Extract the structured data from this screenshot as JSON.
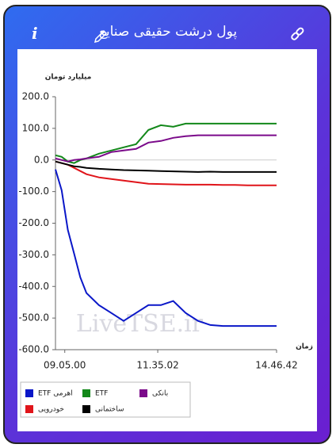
{
  "header": {
    "title": "پول درشت حقیقی صنایع",
    "info_icon": "i"
  },
  "watermark": "LiveTSE.ir",
  "chart_data": {
    "type": "line",
    "y_label": "میلیارد تومان",
    "x_label": "زمان",
    "ylim": [
      -600,
      200
    ],
    "yticks": [
      {
        "value": 200,
        "label": "200.0"
      },
      {
        "value": 100,
        "label": "100.0"
      },
      {
        "value": 0,
        "label": "0.0"
      },
      {
        "value": -100,
        "label": "-100.0"
      },
      {
        "value": -200,
        "label": "-200.0"
      },
      {
        "value": -300,
        "label": "-300.0"
      },
      {
        "value": -400,
        "label": "-400.0"
      },
      {
        "value": -500,
        "label": "-500.0"
      },
      {
        "value": -600,
        "label": "-600.0"
      }
    ],
    "xlim": [
      530,
      886.7
    ],
    "xticks": [
      {
        "value": 545,
        "label": "09.05.00"
      },
      {
        "value": 695,
        "label": "11.35.02"
      },
      {
        "value": 886.7,
        "label": "14.46.42"
      }
    ],
    "x": [
      530,
      540,
      550,
      560,
      570,
      580,
      600,
      620,
      640,
      660,
      680,
      700,
      720,
      740,
      760,
      780,
      800,
      820,
      840,
      860,
      886.7
    ],
    "series": [
      {
        "name": "ETF اهرمی",
        "color": "#0a17c8",
        "values": [
          -30,
          -96,
          -221,
          -296,
          -371,
          -421,
          -459,
          -484,
          -509,
          -484,
          -459,
          -459,
          -446,
          -484,
          -509,
          -522,
          -525,
          -525,
          -525,
          -525,
          -525
        ]
      },
      {
        "name": "ETF",
        "color": "#13881a",
        "values": [
          15,
          10,
          -5,
          -10,
          0,
          5,
          20,
          30,
          40,
          50,
          95,
          110,
          105,
          115,
          115,
          115,
          115,
          115,
          115,
          115,
          115
        ]
      },
      {
        "name": "بانکی",
        "color": "#7b0a8a",
        "values": [
          5,
          0,
          -5,
          0,
          2,
          5,
          10,
          25,
          30,
          35,
          55,
          60,
          70,
          75,
          78,
          78,
          78,
          78,
          78,
          78,
          78
        ]
      },
      {
        "name": "خودرویی",
        "color": "#e0141a",
        "values": [
          -5,
          -10,
          -15,
          -25,
          -35,
          -45,
          -55,
          -60,
          -65,
          -70,
          -75,
          -76,
          -77,
          -78,
          -78,
          -78,
          -79,
          -79,
          -80,
          -80,
          -80
        ]
      },
      {
        "name": "ساختمانی",
        "color": "#000000",
        "values": [
          -5,
          -10,
          -15,
          -20,
          -22,
          -25,
          -28,
          -30,
          -32,
          -33,
          -34,
          -35,
          -36,
          -37,
          -38,
          -37,
          -38,
          -38,
          -38,
          -38,
          -38
        ]
      }
    ]
  }
}
